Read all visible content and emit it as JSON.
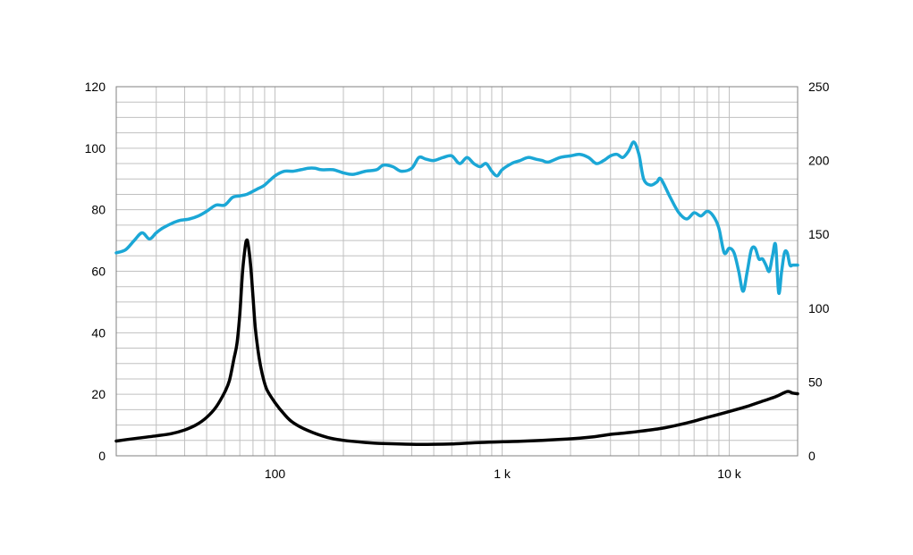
{
  "chart_data": {
    "type": "line",
    "title": "",
    "xlabel": "",
    "ylabel": "",
    "y2label": "",
    "x_scale": "log",
    "xlim": [
      20,
      20000
    ],
    "ylim": [
      0,
      120
    ],
    "y2lim": [
      0,
      250
    ],
    "grid": true,
    "x_tick_labels": [
      {
        "value": 100,
        "label": "100"
      },
      {
        "value": 1000,
        "label": "1 k"
      },
      {
        "value": 10000,
        "label": "10 k"
      }
    ],
    "y_ticks": [
      0,
      20,
      40,
      60,
      80,
      100,
      120
    ],
    "y2_ticks": [
      0,
      50,
      100,
      150,
      200,
      250
    ],
    "colors": {
      "frequency_response": "#1ba7d6",
      "impedance": "#000000",
      "grid": "#c0c0c0",
      "frame": "#808080"
    },
    "series": [
      {
        "id": "frequency_response",
        "axis": "left",
        "x": [
          20,
          22,
          24,
          26,
          28,
          30,
          32,
          35,
          38,
          42,
          46,
          50,
          55,
          60,
          65,
          70,
          75,
          80,
          85,
          90,
          100,
          110,
          120,
          130,
          140,
          150,
          160,
          180,
          200,
          220,
          250,
          280,
          300,
          330,
          360,
          400,
          430,
          460,
          500,
          550,
          600,
          650,
          700,
          750,
          800,
          850,
          900,
          950,
          1000,
          1100,
          1200,
          1300,
          1400,
          1500,
          1600,
          1800,
          2000,
          2200,
          2400,
          2600,
          2800,
          3000,
          3200,
          3400,
          3600,
          3800,
          4000,
          4200,
          4500,
          4800,
          5000,
          5500,
          6000,
          6500,
          7000,
          7500,
          8000,
          8500,
          9000,
          9500,
          10000,
          10500,
          11000,
          11500,
          12000,
          12500,
          13000,
          13500,
          14000,
          14500,
          15000,
          15500,
          16000,
          16500,
          17000,
          17500,
          18000,
          18500,
          19000,
          19500,
          20000
        ],
        "values": [
          66,
          67,
          70,
          72.5,
          70.5,
          72.5,
          74,
          75.5,
          76.5,
          77,
          78,
          79.5,
          81.5,
          81.5,
          84,
          84.5,
          85,
          86,
          87,
          88,
          91,
          92.5,
          92.5,
          93,
          93.5,
          93.5,
          93,
          93,
          92,
          91.5,
          92.5,
          93,
          94.5,
          94,
          92.5,
          93.5,
          97,
          96.5,
          96,
          97,
          97.5,
          95,
          97,
          95,
          94,
          95,
          92.5,
          91,
          93,
          95,
          96,
          97,
          96.5,
          96,
          95.5,
          97,
          97.5,
          98,
          97,
          95,
          96,
          97.5,
          98,
          97,
          99,
          102,
          98,
          90,
          88,
          89,
          90,
          84,
          79,
          77,
          79,
          78,
          79.5,
          78,
          74,
          66,
          67.5,
          66,
          60,
          53.5,
          60,
          67,
          67.5,
          64,
          64,
          62,
          60,
          65,
          68.5,
          53,
          60,
          66,
          66,
          62,
          62,
          62,
          62
        ]
      },
      {
        "id": "impedance",
        "axis": "right",
        "x": [
          20,
          25,
          30,
          35,
          40,
          45,
          50,
          55,
          60,
          63,
          66,
          68,
          70,
          72,
          74,
          75,
          76,
          78,
          80,
          82,
          85,
          88,
          92,
          100,
          110,
          120,
          140,
          170,
          200,
          250,
          300,
          400,
          500,
          600,
          800,
          1000,
          1200,
          1500,
          2000,
          2500,
          3000,
          3500,
          4000,
          5000,
          6000,
          7000,
          8000,
          10000,
          12000,
          14000,
          16000,
          18000,
          19000,
          20000
        ],
        "values": [
          10,
          12,
          13.5,
          15,
          17.5,
          21,
          26,
          33,
          43,
          51,
          66,
          76,
          96,
          125,
          142,
          146,
          144,
          130,
          108,
          86,
          67,
          55,
          45,
          36,
          28,
          22.5,
          17,
          12.5,
          10.5,
          9,
          8.3,
          7.8,
          7.8,
          8,
          9,
          9.5,
          9.8,
          10.5,
          11.5,
          12.8,
          14.5,
          15.5,
          16.5,
          18.5,
          21,
          23.5,
          26,
          30,
          33.5,
          37,
          40,
          43.5,
          42.5,
          42
        ]
      }
    ]
  }
}
